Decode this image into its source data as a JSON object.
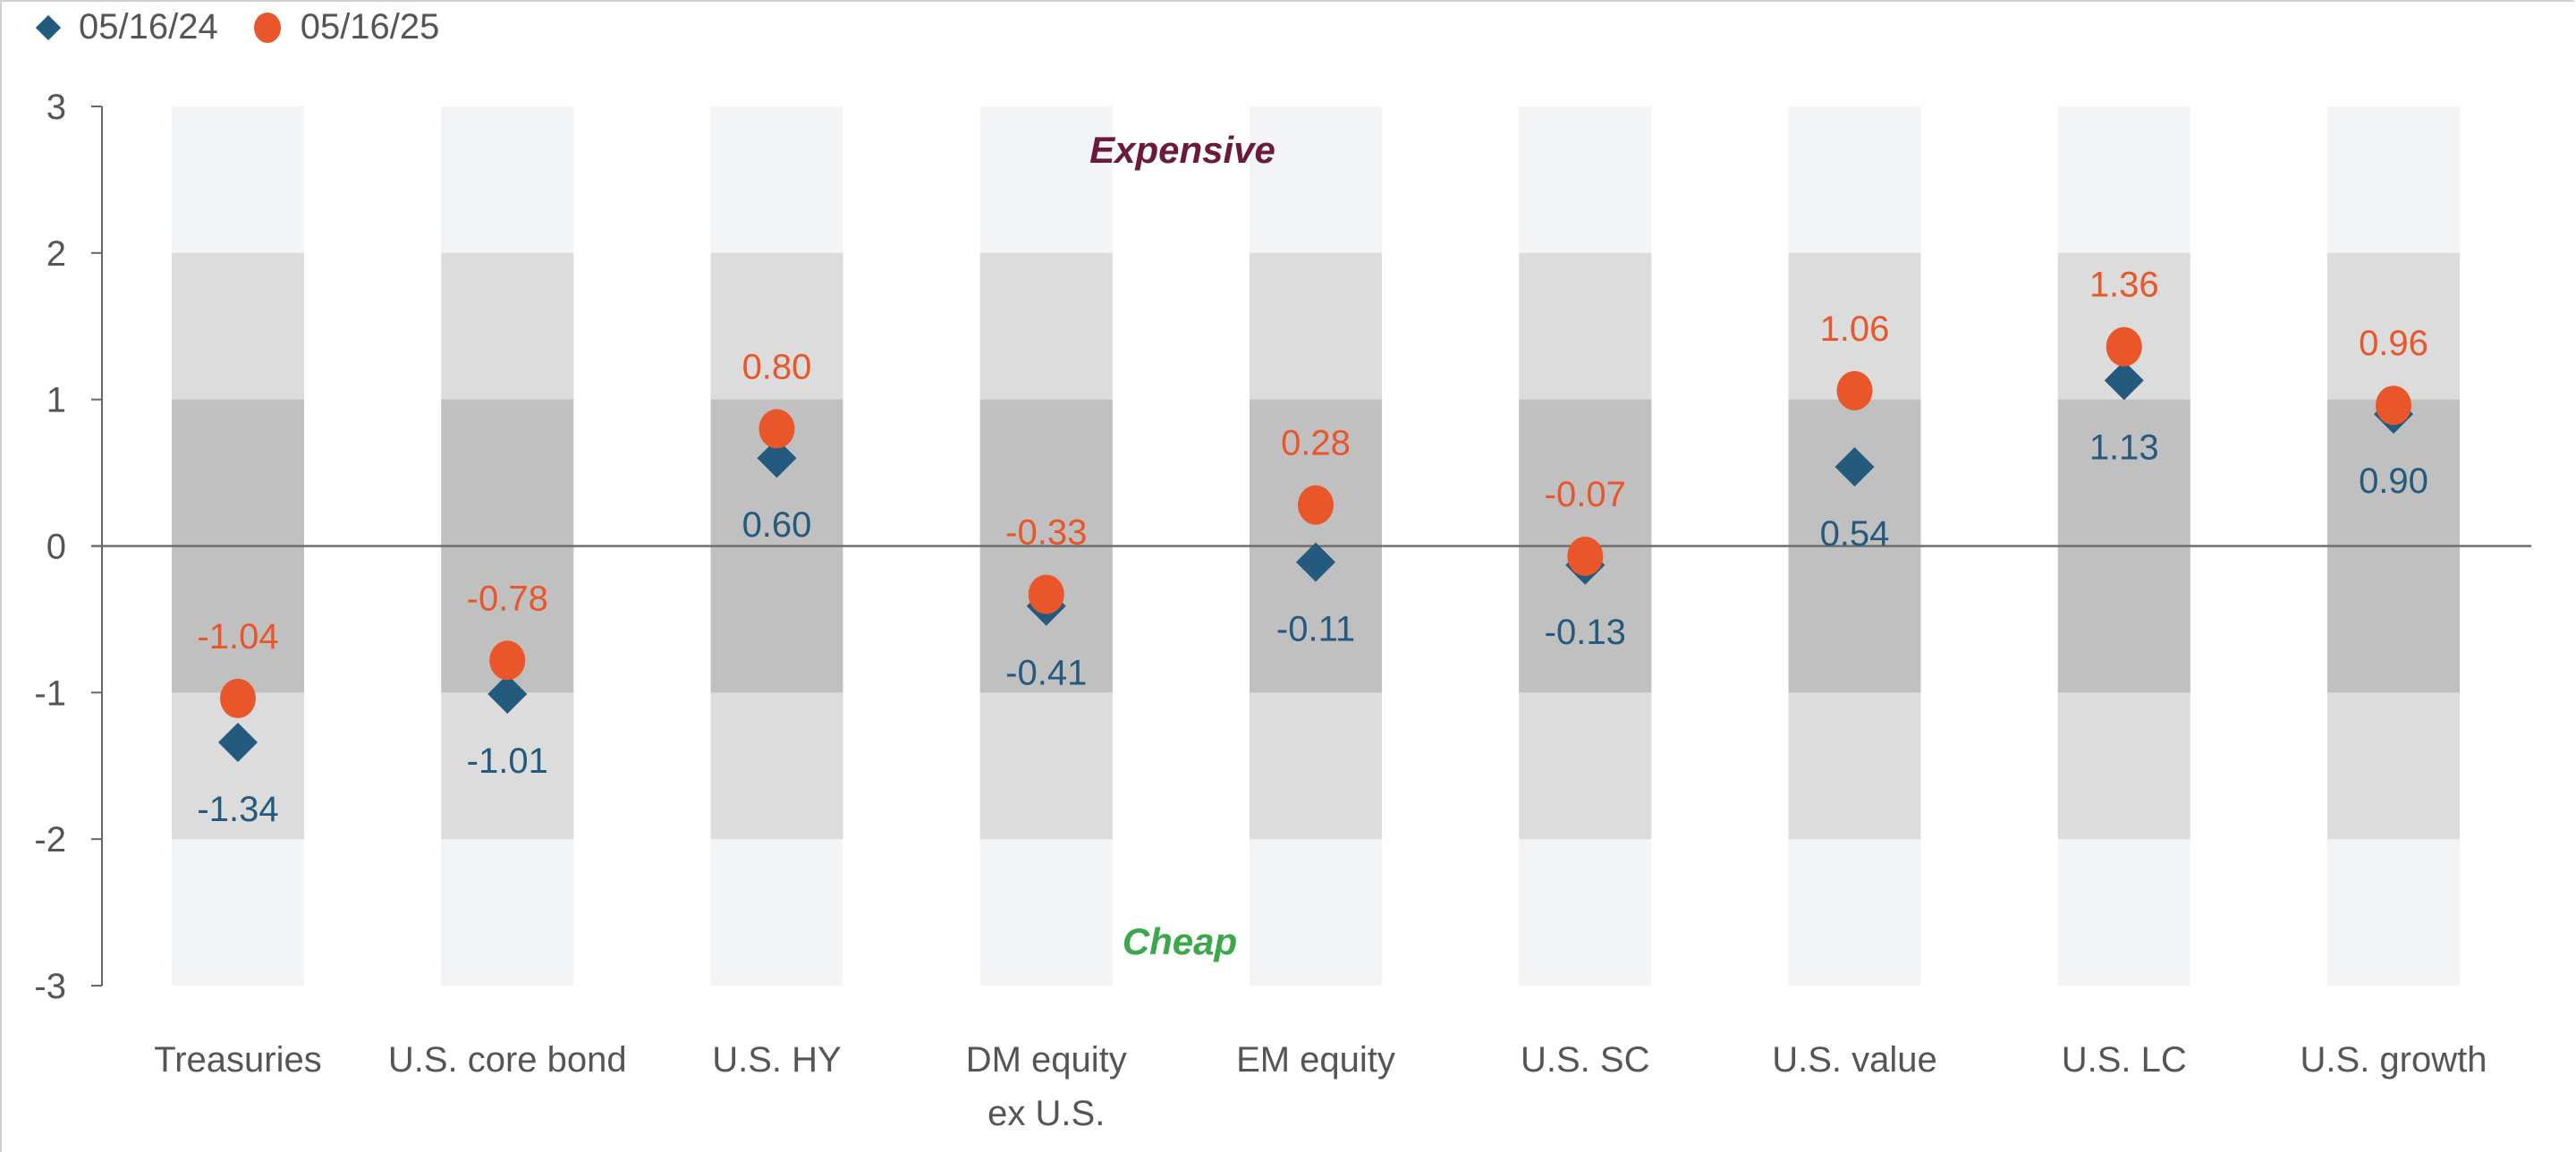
{
  "chart_data": {
    "type": "scatter",
    "categories": [
      "Treasuries",
      "U.S. core bond",
      "U.S. HY",
      "DM equity ex U.S.",
      "EM equity",
      "U.S. SC",
      "U.S. value",
      "U.S. LC",
      "U.S. growth"
    ],
    "category_lines": [
      [
        "Treasuries"
      ],
      [
        "U.S. core bond"
      ],
      [
        "U.S. HY"
      ],
      [
        "DM equity",
        "ex U.S."
      ],
      [
        "EM equity"
      ],
      [
        "U.S. SC"
      ],
      [
        "U.S. value"
      ],
      [
        "U.S. LC"
      ],
      [
        "U.S. growth"
      ]
    ],
    "series": [
      {
        "name": "05/16/24",
        "marker": "diamond",
        "color": "#245a7e",
        "values": [
          -1.34,
          -1.01,
          0.6,
          -0.41,
          -0.11,
          -0.13,
          0.54,
          1.13,
          0.9
        ],
        "labels": [
          "-1.34",
          "-1.01",
          "0.60",
          "-0.41",
          "-0.11",
          "-0.13",
          "0.54",
          "1.13",
          "0.90"
        ]
      },
      {
        "name": "05/16/25",
        "marker": "circle",
        "color": "#e8562a",
        "values": [
          -1.04,
          -0.78,
          0.8,
          -0.33,
          0.28,
          -0.07,
          1.06,
          1.36,
          0.96
        ],
        "labels": [
          "-1.04",
          "-0.78",
          "0.80",
          "-0.33",
          "0.28",
          "-0.07",
          "1.06",
          "1.36",
          "0.96"
        ]
      }
    ],
    "ylim": [
      -3,
      3
    ],
    "yticks": [
      "3",
      "2",
      "1",
      "0",
      "-1",
      "-2",
      "-3"
    ],
    "bands": [
      {
        "range": [
          -3,
          3
        ],
        "color": "#f3f4f5"
      },
      {
        "range": [
          -2,
          2
        ],
        "color": "#dcdcdc"
      },
      {
        "range": [
          -1,
          1
        ],
        "color": "#c0c0c0"
      }
    ],
    "annotations": {
      "top": "Expensive",
      "top_color": "#6b1a3a",
      "bottom": "Cheap",
      "bottom_color": "#3aa84a"
    },
    "legend": "top-left"
  }
}
